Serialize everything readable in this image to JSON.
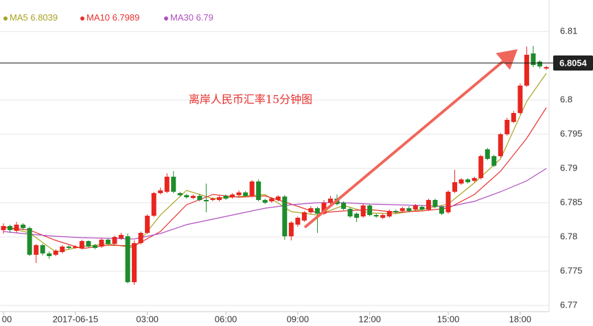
{
  "chart_data": {
    "type": "candlestick",
    "annotation": "离岸人民币汇率15分钟图",
    "categories": [
      "00",
      null,
      null,
      null,
      null,
      null,
      null,
      null,
      null,
      null,
      null,
      "2017-06-15",
      null,
      null,
      null,
      null,
      null,
      null,
      null,
      null,
      null,
      null,
      "03:00",
      null,
      null,
      null,
      null,
      null,
      null,
      null,
      null,
      null,
      null,
      null,
      "06:00",
      null,
      null,
      null,
      null,
      null,
      null,
      null,
      null,
      null,
      null,
      "09:00",
      null,
      null,
      null,
      null,
      null,
      null,
      null,
      null,
      null,
      null,
      "12:00",
      null,
      null,
      null,
      null,
      null,
      null,
      null,
      null,
      null,
      null,
      null,
      "15:00",
      null,
      null,
      null,
      null,
      null,
      null,
      null,
      null,
      null,
      null,
      "18:00",
      null,
      null,
      null,
      null
    ],
    "open": [
      6.781,
      6.7816,
      6.7809,
      6.7818,
      6.7813,
      6.7774,
      6.7788,
      6.7776,
      6.7774,
      6.7778,
      6.7786,
      6.7784,
      6.7784,
      6.7794,
      6.7788,
      6.7786,
      6.7796,
      6.779,
      6.7798,
      6.7801,
      6.7734,
      6.7791,
      6.7806,
      6.7831,
      6.7864,
      6.7866,
      6.7888,
      6.7864,
      6.7861,
      6.7857,
      6.786,
      6.7854,
      6.7854,
      6.7854,
      6.786,
      6.7858,
      6.7861,
      6.7865,
      6.786,
      6.7881,
      6.7854,
      6.7852,
      6.7854,
      6.7859,
      6.7801,
      6.7818,
      6.7824,
      6.7836,
      6.7842,
      6.7834,
      6.785,
      6.7856,
      6.785,
      6.7841,
      6.7834,
      6.783,
      6.7846,
      6.7832,
      6.7828,
      6.783,
      6.7838,
      6.7838,
      6.7842,
      6.784,
      6.7844,
      6.784,
      6.7854,
      6.7844,
      6.7836,
      6.7866,
      6.7878,
      6.7884,
      6.7882,
      6.7886,
      6.7928,
      6.7918,
      6.7918,
      6.795,
      6.7968,
      6.7981,
      6.8021,
      6.8068,
      6.8056,
      6.8046
    ],
    "high": [
      6.782,
      6.7818,
      6.7822,
      6.782,
      6.7815,
      6.779,
      6.779,
      6.7779,
      6.7782,
      6.7788,
      6.7788,
      6.7788,
      6.7796,
      6.7795,
      6.779,
      6.7798,
      6.7798,
      6.7802,
      6.7806,
      6.7805,
      6.7795,
      6.7808,
      6.7833,
      6.7866,
      6.7872,
      6.7893,
      6.7896,
      6.7866,
      6.7863,
      6.7862,
      6.7863,
      6.7878,
      6.7858,
      6.786,
      6.7862,
      6.7864,
      6.7868,
      6.7867,
      6.7883,
      6.7884,
      6.7856,
      6.7858,
      6.7861,
      6.7861,
      6.7823,
      6.783,
      6.7838,
      6.7845,
      6.7844,
      6.7854,
      6.786,
      6.7862,
      6.7852,
      6.7843,
      6.7836,
      6.7848,
      6.7848,
      6.7834,
      6.7834,
      6.784,
      6.784,
      6.7844,
      6.7845,
      6.7848,
      6.7846,
      6.7856,
      6.7856,
      6.7846,
      6.7868,
      6.7898,
      6.7886,
      6.7886,
      6.7888,
      6.792,
      6.793,
      6.792,
      6.7952,
      6.7974,
      6.7984,
      6.8024,
      6.8078,
      6.8079,
      6.8058,
      6.805
    ],
    "low": [
      6.7805,
      6.7806,
      6.7806,
      6.781,
      6.7772,
      6.7762,
      6.7773,
      6.7768,
      6.7772,
      6.7776,
      6.7782,
      6.7783,
      6.7782,
      6.7784,
      6.7782,
      6.7784,
      6.7788,
      6.7788,
      6.7796,
      6.7732,
      6.773,
      6.7789,
      6.7804,
      6.7829,
      6.7862,
      6.7864,
      6.7864,
      6.7859,
      6.7856,
      6.7855,
      6.7852,
      6.7836,
      6.7852,
      6.7852,
      6.7854,
      6.7856,
      6.7859,
      6.7858,
      6.7858,
      6.7852,
      6.7848,
      6.785,
      6.7852,
      6.7796,
      6.7795,
      6.7815,
      6.7822,
      6.7834,
      6.7806,
      6.7832,
      6.7848,
      6.7846,
      6.7839,
      6.7828,
      6.7822,
      6.7828,
      6.783,
      6.7828,
      6.7826,
      6.7828,
      6.7834,
      6.7836,
      6.7836,
      6.7838,
      6.7838,
      6.7838,
      6.7842,
      6.7832,
      6.7834,
      6.7864,
      6.7876,
      6.7878,
      6.788,
      6.7884,
      6.7912,
      6.7902,
      6.7916,
      6.7948,
      6.7966,
      6.7979,
      6.8019,
      6.8048,
      6.8046,
      6.8044
    ],
    "close": [
      6.7816,
      6.781,
      6.7818,
      6.7813,
      6.7774,
      6.7788,
      6.7776,
      6.7772,
      6.778,
      6.7786,
      6.7784,
      6.7786,
      6.7794,
      6.7786,
      6.7784,
      6.7796,
      6.779,
      6.78,
      6.7803,
      6.7734,
      6.7791,
      6.7806,
      6.7831,
      6.7864,
      6.7868,
      6.7888,
      6.7866,
      6.7861,
      6.7858,
      6.786,
      6.7854,
      6.7852,
      6.7856,
      6.7858,
      6.7856,
      6.7862,
      6.7865,
      6.786,
      6.7881,
      6.7854,
      6.785,
      6.7856,
      6.7859,
      6.7801,
      6.7821,
      6.7828,
      6.7836,
      6.7842,
      6.7834,
      6.785,
      6.7856,
      6.7848,
      6.7841,
      6.783,
      6.7828,
      6.7846,
      6.7832,
      6.783,
      6.7832,
      6.7838,
      6.7836,
      6.7842,
      6.7838,
      6.7846,
      6.784,
      6.7854,
      6.7844,
      6.7834,
      6.7866,
      6.788,
      6.7884,
      6.788,
      6.7886,
      6.7918,
      6.7914,
      6.7904,
      6.795,
      6.7971,
      6.7981,
      6.8021,
      6.8066,
      6.8051,
      6.8049,
      6.8048
    ],
    "up_color": "#e8251f",
    "down_color": "#1e8c2c",
    "lines": [
      {
        "name": "MA5",
        "legend_value": 6.8039,
        "color": "#a8a222",
        "x": [
          0,
          4,
          8,
          12,
          16,
          20,
          24,
          28,
          32,
          36,
          40,
          44,
          48,
          52,
          56,
          60,
          64,
          68,
          72,
          76,
          80,
          83
        ],
        "values": [
          6.7815,
          6.7806,
          6.7778,
          6.7786,
          6.779,
          6.7784,
          6.7832,
          6.7868,
          6.7856,
          6.7859,
          6.7862,
          6.7837,
          6.7832,
          6.7846,
          6.7835,
          6.7834,
          6.784,
          6.7848,
          6.7879,
          6.7914,
          6.7998,
          6.8039
        ]
      },
      {
        "name": "MA10",
        "legend_value": 6.7989,
        "color": "#e8302e",
        "x": [
          0,
          4,
          8,
          12,
          16,
          20,
          24,
          28,
          32,
          36,
          40,
          44,
          48,
          52,
          56,
          60,
          64,
          68,
          72,
          76,
          80,
          83
        ],
        "values": [
          6.7814,
          6.781,
          6.7795,
          6.7783,
          6.7788,
          6.7787,
          6.7808,
          6.7847,
          6.7862,
          6.7858,
          6.786,
          6.7848,
          6.7835,
          6.7838,
          6.784,
          6.7836,
          6.7838,
          6.7842,
          6.7862,
          6.7896,
          6.7944,
          6.7989
        ]
      },
      {
        "name": "MA30",
        "legend_value": 6.79,
        "color": "#b04fc0",
        "x": [
          0,
          4,
          8,
          12,
          16,
          20,
          24,
          28,
          32,
          36,
          40,
          44,
          48,
          52,
          56,
          60,
          64,
          68,
          72,
          76,
          80,
          83
        ],
        "values": [
          6.7808,
          6.7804,
          6.7801,
          6.7799,
          6.7798,
          6.7797,
          6.7805,
          6.7818,
          6.7826,
          6.7834,
          6.7842,
          6.7847,
          6.785,
          6.785,
          6.7848,
          6.7847,
          6.7846,
          6.7844,
          6.7852,
          6.7866,
          6.7882,
          6.79
        ]
      }
    ],
    "last_price": 6.8054,
    "ylim": [
      6.7691,
      6.8146
    ],
    "yticks": [
      6.77,
      6.775,
      6.78,
      6.785,
      6.79,
      6.795,
      6.8,
      6.81
    ],
    "grid": true
  }
}
